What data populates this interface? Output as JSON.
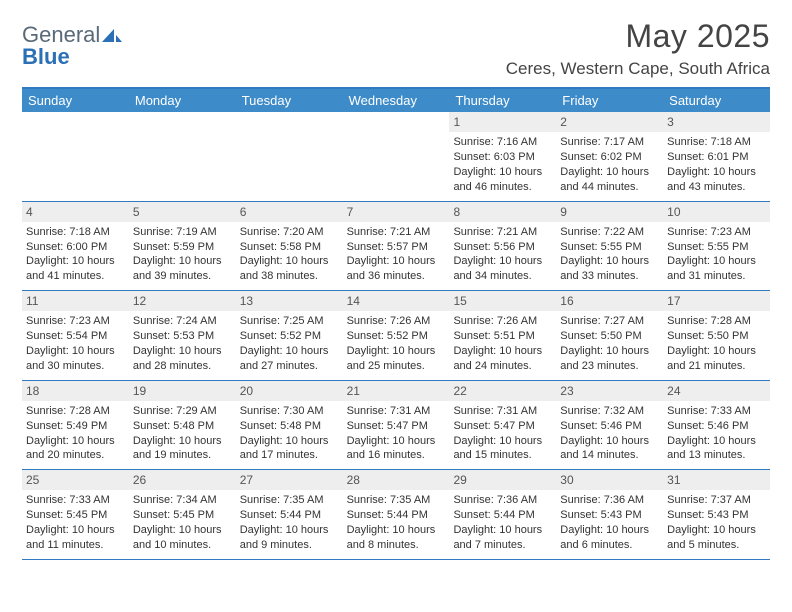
{
  "logo": {
    "text_general": "General",
    "text_blue": "Blue"
  },
  "header": {
    "month_title": "May 2025",
    "location": "Ceres, Western Cape, South Africa"
  },
  "colors": {
    "header_bar": "#3d8bc8",
    "rule": "#2f7ac0",
    "daynum_bg": "#eeeeee",
    "text": "#333333",
    "logo_gray": "#5a6a78",
    "logo_blue": "#2b6fb5"
  },
  "weekdays": [
    "Sunday",
    "Monday",
    "Tuesday",
    "Wednesday",
    "Thursday",
    "Friday",
    "Saturday"
  ],
  "weeks": [
    [
      {
        "day": "",
        "sunrise": "",
        "sunset": "",
        "daylight": ""
      },
      {
        "day": "",
        "sunrise": "",
        "sunset": "",
        "daylight": ""
      },
      {
        "day": "",
        "sunrise": "",
        "sunset": "",
        "daylight": ""
      },
      {
        "day": "",
        "sunrise": "",
        "sunset": "",
        "daylight": ""
      },
      {
        "day": "1",
        "sunrise": "Sunrise: 7:16 AM",
        "sunset": "Sunset: 6:03 PM",
        "daylight": "Daylight: 10 hours and 46 minutes."
      },
      {
        "day": "2",
        "sunrise": "Sunrise: 7:17 AM",
        "sunset": "Sunset: 6:02 PM",
        "daylight": "Daylight: 10 hours and 44 minutes."
      },
      {
        "day": "3",
        "sunrise": "Sunrise: 7:18 AM",
        "sunset": "Sunset: 6:01 PM",
        "daylight": "Daylight: 10 hours and 43 minutes."
      }
    ],
    [
      {
        "day": "4",
        "sunrise": "Sunrise: 7:18 AM",
        "sunset": "Sunset: 6:00 PM",
        "daylight": "Daylight: 10 hours and 41 minutes."
      },
      {
        "day": "5",
        "sunrise": "Sunrise: 7:19 AM",
        "sunset": "Sunset: 5:59 PM",
        "daylight": "Daylight: 10 hours and 39 minutes."
      },
      {
        "day": "6",
        "sunrise": "Sunrise: 7:20 AM",
        "sunset": "Sunset: 5:58 PM",
        "daylight": "Daylight: 10 hours and 38 minutes."
      },
      {
        "day": "7",
        "sunrise": "Sunrise: 7:21 AM",
        "sunset": "Sunset: 5:57 PM",
        "daylight": "Daylight: 10 hours and 36 minutes."
      },
      {
        "day": "8",
        "sunrise": "Sunrise: 7:21 AM",
        "sunset": "Sunset: 5:56 PM",
        "daylight": "Daylight: 10 hours and 34 minutes."
      },
      {
        "day": "9",
        "sunrise": "Sunrise: 7:22 AM",
        "sunset": "Sunset: 5:55 PM",
        "daylight": "Daylight: 10 hours and 33 minutes."
      },
      {
        "day": "10",
        "sunrise": "Sunrise: 7:23 AM",
        "sunset": "Sunset: 5:55 PM",
        "daylight": "Daylight: 10 hours and 31 minutes."
      }
    ],
    [
      {
        "day": "11",
        "sunrise": "Sunrise: 7:23 AM",
        "sunset": "Sunset: 5:54 PM",
        "daylight": "Daylight: 10 hours and 30 minutes."
      },
      {
        "day": "12",
        "sunrise": "Sunrise: 7:24 AM",
        "sunset": "Sunset: 5:53 PM",
        "daylight": "Daylight: 10 hours and 28 minutes."
      },
      {
        "day": "13",
        "sunrise": "Sunrise: 7:25 AM",
        "sunset": "Sunset: 5:52 PM",
        "daylight": "Daylight: 10 hours and 27 minutes."
      },
      {
        "day": "14",
        "sunrise": "Sunrise: 7:26 AM",
        "sunset": "Sunset: 5:52 PM",
        "daylight": "Daylight: 10 hours and 25 minutes."
      },
      {
        "day": "15",
        "sunrise": "Sunrise: 7:26 AM",
        "sunset": "Sunset: 5:51 PM",
        "daylight": "Daylight: 10 hours and 24 minutes."
      },
      {
        "day": "16",
        "sunrise": "Sunrise: 7:27 AM",
        "sunset": "Sunset: 5:50 PM",
        "daylight": "Daylight: 10 hours and 23 minutes."
      },
      {
        "day": "17",
        "sunrise": "Sunrise: 7:28 AM",
        "sunset": "Sunset: 5:50 PM",
        "daylight": "Daylight: 10 hours and 21 minutes."
      }
    ],
    [
      {
        "day": "18",
        "sunrise": "Sunrise: 7:28 AM",
        "sunset": "Sunset: 5:49 PM",
        "daylight": "Daylight: 10 hours and 20 minutes."
      },
      {
        "day": "19",
        "sunrise": "Sunrise: 7:29 AM",
        "sunset": "Sunset: 5:48 PM",
        "daylight": "Daylight: 10 hours and 19 minutes."
      },
      {
        "day": "20",
        "sunrise": "Sunrise: 7:30 AM",
        "sunset": "Sunset: 5:48 PM",
        "daylight": "Daylight: 10 hours and 17 minutes."
      },
      {
        "day": "21",
        "sunrise": "Sunrise: 7:31 AM",
        "sunset": "Sunset: 5:47 PM",
        "daylight": "Daylight: 10 hours and 16 minutes."
      },
      {
        "day": "22",
        "sunrise": "Sunrise: 7:31 AM",
        "sunset": "Sunset: 5:47 PM",
        "daylight": "Daylight: 10 hours and 15 minutes."
      },
      {
        "day": "23",
        "sunrise": "Sunrise: 7:32 AM",
        "sunset": "Sunset: 5:46 PM",
        "daylight": "Daylight: 10 hours and 14 minutes."
      },
      {
        "day": "24",
        "sunrise": "Sunrise: 7:33 AM",
        "sunset": "Sunset: 5:46 PM",
        "daylight": "Daylight: 10 hours and 13 minutes."
      }
    ],
    [
      {
        "day": "25",
        "sunrise": "Sunrise: 7:33 AM",
        "sunset": "Sunset: 5:45 PM",
        "daylight": "Daylight: 10 hours and 11 minutes."
      },
      {
        "day": "26",
        "sunrise": "Sunrise: 7:34 AM",
        "sunset": "Sunset: 5:45 PM",
        "daylight": "Daylight: 10 hours and 10 minutes."
      },
      {
        "day": "27",
        "sunrise": "Sunrise: 7:35 AM",
        "sunset": "Sunset: 5:44 PM",
        "daylight": "Daylight: 10 hours and 9 minutes."
      },
      {
        "day": "28",
        "sunrise": "Sunrise: 7:35 AM",
        "sunset": "Sunset: 5:44 PM",
        "daylight": "Daylight: 10 hours and 8 minutes."
      },
      {
        "day": "29",
        "sunrise": "Sunrise: 7:36 AM",
        "sunset": "Sunset: 5:44 PM",
        "daylight": "Daylight: 10 hours and 7 minutes."
      },
      {
        "day": "30",
        "sunrise": "Sunrise: 7:36 AM",
        "sunset": "Sunset: 5:43 PM",
        "daylight": "Daylight: 10 hours and 6 minutes."
      },
      {
        "day": "31",
        "sunrise": "Sunrise: 7:37 AM",
        "sunset": "Sunset: 5:43 PM",
        "daylight": "Daylight: 10 hours and 5 minutes."
      }
    ]
  ]
}
